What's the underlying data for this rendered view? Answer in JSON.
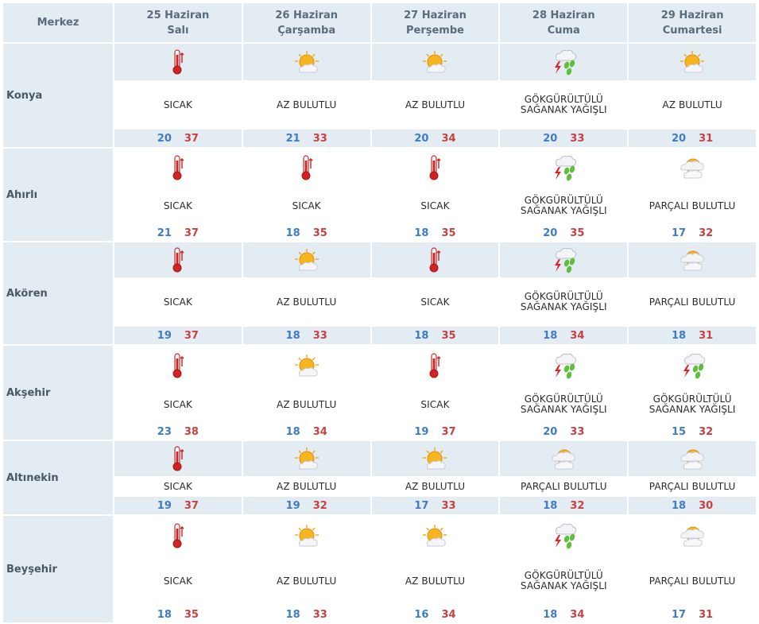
{
  "header": {
    "merkez_label": "Merkez",
    "days": [
      {
        "date": "25 Haziran",
        "weekday": "Salı"
      },
      {
        "date": "26 Haziran",
        "weekday": "Çarşamba"
      },
      {
        "date": "27 Haziran",
        "weekday": "Perşembe"
      },
      {
        "date": "28 Haziran",
        "weekday": "Cuma"
      },
      {
        "date": "29 Haziran",
        "weekday": "Cumartesi"
      }
    ]
  },
  "rows": [
    {
      "city": "Konya",
      "days": [
        {
          "icon": "thermometer-icon",
          "desc": [
            "SICAK"
          ],
          "min": "20",
          "max": "37"
        },
        {
          "icon": "partly-sunny-icon",
          "desc": [
            "AZ BULUTLU"
          ],
          "min": "21",
          "max": "33"
        },
        {
          "icon": "partly-sunny-icon",
          "desc": [
            "AZ BULUTLU"
          ],
          "min": "20",
          "max": "34"
        },
        {
          "icon": "thunderstorm-icon",
          "desc": [
            "GÖKGÜRÜLTÜLÜ",
            "SAĞANAK YAĞIŞLI"
          ],
          "min": "20",
          "max": "33"
        },
        {
          "icon": "partly-sunny-icon",
          "desc": [
            "AZ BULUTLU"
          ],
          "min": "20",
          "max": "31"
        }
      ]
    },
    {
      "city": "Ahırlı",
      "days": [
        {
          "icon": "thermometer-icon",
          "desc": [
            "SICAK"
          ],
          "min": "21",
          "max": "37"
        },
        {
          "icon": "thermometer-icon",
          "desc": [
            "SICAK"
          ],
          "min": "18",
          "max": "35"
        },
        {
          "icon": "thermometer-icon",
          "desc": [
            "SICAK"
          ],
          "min": "18",
          "max": "35"
        },
        {
          "icon": "thunderstorm-icon",
          "desc": [
            "GÖKGÜRÜLTÜLÜ",
            "SAĞANAK YAĞIŞLI"
          ],
          "min": "20",
          "max": "35"
        },
        {
          "icon": "cloudy-sun-icon",
          "desc": [
            "PARÇALI BULUTLU"
          ],
          "min": "17",
          "max": "32"
        }
      ]
    },
    {
      "city": "Akören",
      "days": [
        {
          "icon": "thermometer-icon",
          "desc": [
            "SICAK"
          ],
          "min": "19",
          "max": "37"
        },
        {
          "icon": "partly-sunny-icon",
          "desc": [
            "AZ BULUTLU"
          ],
          "min": "18",
          "max": "33"
        },
        {
          "icon": "thermometer-icon",
          "desc": [
            "SICAK"
          ],
          "min": "18",
          "max": "35"
        },
        {
          "icon": "thunderstorm-icon",
          "desc": [
            "GÖKGÜRÜLTÜLÜ",
            "SAĞANAK YAĞIŞLI"
          ],
          "min": "18",
          "max": "34"
        },
        {
          "icon": "cloudy-sun-icon",
          "desc": [
            "PARÇALI BULUTLU"
          ],
          "min": "18",
          "max": "31"
        }
      ]
    },
    {
      "city": "Akşehir",
      "days": [
        {
          "icon": "thermometer-icon",
          "desc": [
            "SICAK"
          ],
          "min": "23",
          "max": "38"
        },
        {
          "icon": "partly-sunny-icon",
          "desc": [
            "AZ BULUTLU"
          ],
          "min": "18",
          "max": "34"
        },
        {
          "icon": "thermometer-icon",
          "desc": [
            "SICAK"
          ],
          "min": "19",
          "max": "37"
        },
        {
          "icon": "thunderstorm-icon",
          "desc": [
            "GÖKGÜRÜLTÜLÜ",
            "SAĞANAK YAĞIŞLI"
          ],
          "min": "20",
          "max": "33"
        },
        {
          "icon": "thunderstorm-icon",
          "desc": [
            "GÖKGÜRÜLTÜLÜ",
            "SAĞANAK YAĞIŞLI"
          ],
          "min": "15",
          "max": "32"
        }
      ]
    },
    {
      "city": "Altınekin",
      "days": [
        {
          "icon": "thermometer-icon",
          "desc": [
            "SICAK"
          ],
          "min": "19",
          "max": "37"
        },
        {
          "icon": "partly-sunny-icon",
          "desc": [
            "AZ BULUTLU"
          ],
          "min": "19",
          "max": "32"
        },
        {
          "icon": "partly-sunny-icon",
          "desc": [
            "AZ BULUTLU"
          ],
          "min": "17",
          "max": "33"
        },
        {
          "icon": "cloudy-sun-icon",
          "desc": [
            "PARÇALI BULUTLU"
          ],
          "min": "18",
          "max": "32"
        },
        {
          "icon": "cloudy-sun-icon",
          "desc": [
            "PARÇALI BULUTLU"
          ],
          "min": "18",
          "max": "30"
        }
      ]
    },
    {
      "city": "Beyşehir",
      "days": [
        {
          "icon": "thermometer-icon",
          "desc": [
            "SICAK"
          ],
          "min": "18",
          "max": "35"
        },
        {
          "icon": "partly-sunny-icon",
          "desc": [
            "AZ BULUTLU"
          ],
          "min": "18",
          "max": "33"
        },
        {
          "icon": "partly-sunny-icon",
          "desc": [
            "AZ BULUTLU"
          ],
          "min": "16",
          "max": "34"
        },
        {
          "icon": "thunderstorm-icon",
          "desc": [
            "GÖKGÜRÜLTÜLÜ",
            "SAĞANAK YAĞIŞLI"
          ],
          "min": "18",
          "max": "34"
        },
        {
          "icon": "cloudy-sun-icon",
          "desc": [
            "PARÇALI BULUTLU"
          ],
          "min": "17",
          "max": "31"
        }
      ]
    }
  ],
  "colors": {
    "header_bg": "#e3ebf3",
    "min_temp": "#3f7cc4",
    "max_temp": "#c94040"
  }
}
